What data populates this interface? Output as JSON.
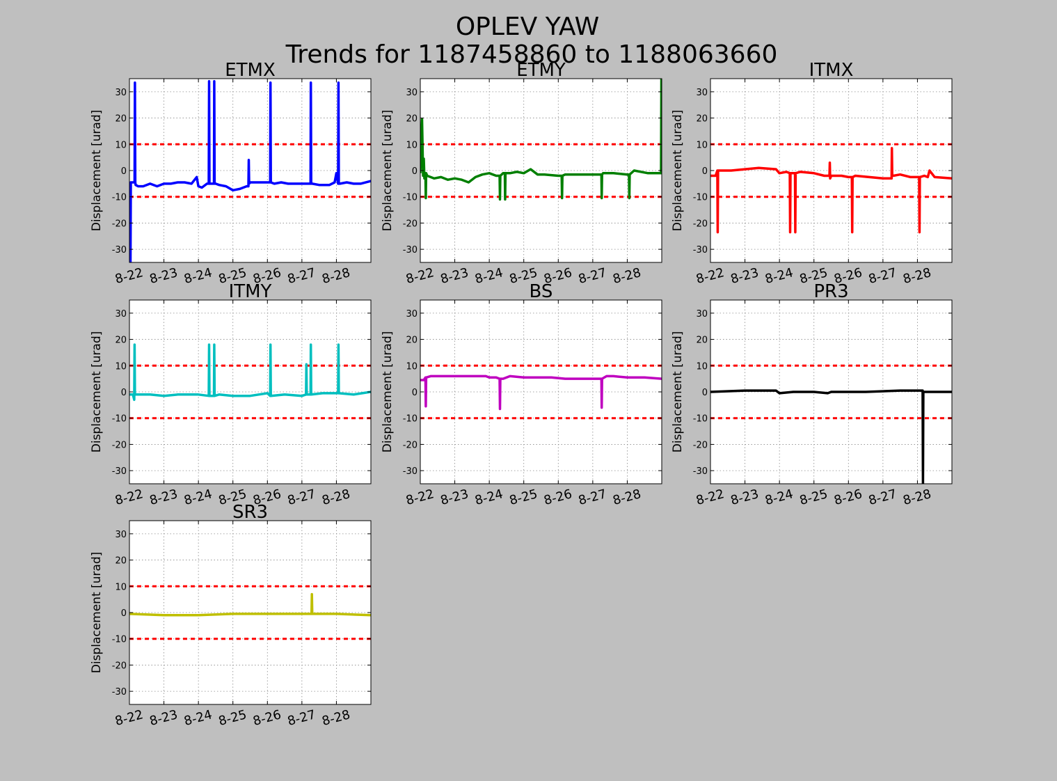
{
  "figure": {
    "title_line1": "OPLEV YAW",
    "title_line2": "Trends for 1187458860 to 1188063660",
    "background": "#bfbfbf"
  },
  "chart_data": [
    {
      "type": "line",
      "title": "ETMX",
      "ylabel": "Displacement [urad]",
      "xlabel": "",
      "color": "#0000ff",
      "ylim": [
        -35,
        35
      ],
      "xlim": [
        0,
        7
      ],
      "grid": true,
      "yticks": [
        -30,
        -20,
        -10,
        0,
        10,
        20,
        30
      ],
      "xticks": [
        0,
        1,
        2,
        3,
        4,
        5,
        6
      ],
      "xtick_labels": [
        "8-22",
        "8-23",
        "8-24",
        "8-25",
        "8-26",
        "8-27",
        "8-28"
      ],
      "thresholds": [
        10,
        -10
      ],
      "x": [
        0,
        0.03,
        0.04,
        0.05,
        0.08,
        0.15,
        0.16,
        0.17,
        0.18,
        0.25,
        0.4,
        0.6,
        0.8,
        1.0,
        1.2,
        1.4,
        1.6,
        1.8,
        1.95,
        2.0,
        2.1,
        2.25,
        2.3,
        2.31,
        2.32,
        2.35,
        2.45,
        2.46,
        2.47,
        2.5,
        2.6,
        2.8,
        3.0,
        3.2,
        3.4,
        3.45,
        3.46,
        3.47,
        3.5,
        3.55,
        3.6,
        3.8,
        4.0,
        4.08,
        4.09,
        4.1,
        4.2,
        4.4,
        4.6,
        4.8,
        5.0,
        5.25,
        5.26,
        5.27,
        5.3,
        5.5,
        5.8,
        5.95,
        6.0,
        6.05,
        6.06,
        6.07,
        6.1,
        6.3,
        6.5,
        6.7,
        7.0
      ],
      "y": [
        -4.5,
        -35,
        -4.5,
        -4.5,
        -4.5,
        -4.5,
        33.5,
        -4.5,
        -5.5,
        -6,
        -6,
        -5,
        -6,
        -5,
        -5,
        -4.5,
        -4.5,
        -5,
        -2.5,
        -6,
        -6.5,
        -5,
        -5,
        34,
        -5,
        -5,
        -5,
        34,
        -5,
        -5,
        -5.5,
        -6,
        -7.5,
        -7,
        -6,
        -6,
        4,
        -5,
        -4.5,
        -4.5,
        -4.5,
        -4.5,
        -4.5,
        -4.5,
        33.5,
        -4.5,
        -5,
        -4.5,
        -5,
        -5,
        -5,
        -5,
        33.5,
        -5,
        -5,
        -5.5,
        -5.5,
        -4.5,
        -1,
        -5,
        33.5,
        -5,
        -5,
        -4.5,
        -5,
        -5,
        -4
      ]
    },
    {
      "type": "line",
      "title": "ETMY",
      "ylabel": "Displacement [urad]",
      "xlabel": "",
      "color": "#007f00",
      "ylim": [
        -35,
        35
      ],
      "xlim": [
        0,
        7
      ],
      "grid": true,
      "yticks": [
        -30,
        -20,
        -10,
        0,
        10,
        20,
        30
      ],
      "xticks": [
        0,
        1,
        2,
        3,
        4,
        5,
        6
      ],
      "xtick_labels": [
        "8-22",
        "8-23",
        "8-24",
        "8-25",
        "8-26",
        "8-27",
        "8-28"
      ],
      "thresholds": [
        10,
        -10
      ],
      "x": [
        0,
        0.05,
        0.08,
        0.1,
        0.12,
        0.15,
        0.16,
        0.17,
        0.2,
        0.4,
        0.6,
        0.8,
        1.0,
        1.2,
        1.4,
        1.6,
        1.8,
        2.0,
        2.2,
        2.3,
        2.31,
        2.32,
        2.4,
        2.45,
        2.46,
        2.47,
        2.6,
        2.8,
        3.0,
        3.2,
        3.4,
        3.6,
        4.0,
        4.1,
        4.11,
        4.12,
        4.2,
        4.6,
        5.0,
        5.25,
        5.26,
        5.27,
        5.3,
        5.6,
        6.0,
        6.05,
        6.06,
        6.07,
        6.2,
        6.6,
        6.95,
        6.98,
        6.99,
        7.0
      ],
      "y": [
        -1,
        19.5,
        -2,
        4.5,
        -3,
        -1,
        -10.5,
        -1,
        -2,
        -3,
        -2.5,
        -3.5,
        -3,
        -3.5,
        -4.5,
        -2.5,
        -1.5,
        -1,
        -2,
        -2,
        -11,
        -2,
        -1,
        -1,
        -11,
        -1,
        -1,
        -0.5,
        -1,
        0.5,
        -1.5,
        -1.5,
        -2,
        -2,
        -10.5,
        -2,
        -1.5,
        -1.5,
        -1.5,
        -1.5,
        -10.5,
        -1.5,
        -1,
        -1,
        -1.5,
        -1.5,
        -10.5,
        -1.5,
        0,
        -1,
        -1,
        -1,
        35,
        35
      ]
    },
    {
      "type": "line",
      "title": "ITMX",
      "ylabel": "Displacement [urad]",
      "xlabel": "",
      "color": "#ff0000",
      "ylim": [
        -35,
        35
      ],
      "xlim": [
        0,
        7
      ],
      "grid": true,
      "yticks": [
        -30,
        -20,
        -10,
        0,
        10,
        20,
        30
      ],
      "xticks": [
        0,
        1,
        2,
        3,
        4,
        5,
        6
      ],
      "xtick_labels": [
        "8-22",
        "8-23",
        "8-24",
        "8-25",
        "8-26",
        "8-27",
        "8-28"
      ],
      "thresholds": [
        10,
        -10
      ],
      "x": [
        0,
        0.15,
        0.2,
        0.21,
        0.22,
        0.3,
        0.6,
        1.0,
        1.4,
        1.9,
        2.0,
        2.2,
        2.3,
        2.31,
        2.32,
        2.45,
        2.46,
        2.47,
        2.6,
        3.0,
        3.3,
        3.45,
        3.46,
        3.47,
        3.5,
        3.8,
        4.0,
        4.1,
        4.11,
        4.12,
        4.2,
        4.6,
        5.0,
        5.25,
        5.26,
        5.27,
        5.3,
        5.5,
        5.8,
        6.05,
        6.06,
        6.07,
        6.2,
        6.3,
        6.35,
        6.5,
        7.0
      ],
      "y": [
        -2,
        -2,
        0,
        -23.5,
        0,
        0,
        0,
        0.5,
        1,
        0.5,
        -1,
        -0.5,
        -1,
        -23.5,
        -1,
        -1,
        -23.5,
        -1,
        -0.5,
        -1,
        -2,
        -2,
        3,
        -3,
        -2,
        -2,
        -2.5,
        -2.5,
        -23.5,
        -2.5,
        -2,
        -2.5,
        -3,
        -3,
        8.5,
        -2,
        -2,
        -1.5,
        -2.5,
        -2.5,
        -23.5,
        -2.5,
        -2,
        -2.5,
        0,
        -2.5,
        -3
      ]
    },
    {
      "type": "line",
      "title": "ITMY",
      "ylabel": "Displacement [urad]",
      "xlabel": "",
      "color": "#00bfbf",
      "ylim": [
        -35,
        35
      ],
      "xlim": [
        0,
        7
      ],
      "grid": true,
      "yticks": [
        -30,
        -20,
        -10,
        0,
        10,
        20,
        30
      ],
      "xticks": [
        0,
        1,
        2,
        3,
        4,
        5,
        6
      ],
      "xtick_labels": [
        "8-22",
        "8-23",
        "8-24",
        "8-25",
        "8-26",
        "8-27",
        "8-28"
      ],
      "thresholds": [
        10,
        -10
      ],
      "x": [
        0,
        0.1,
        0.14,
        0.15,
        0.16,
        0.17,
        0.2,
        0.6,
        1.0,
        1.4,
        2.0,
        2.3,
        2.31,
        2.32,
        2.45,
        2.46,
        2.47,
        2.6,
        3.0,
        3.5,
        4.0,
        4.08,
        4.09,
        4.1,
        4.5,
        5.0,
        5.12,
        5.13,
        5.14,
        5.25,
        5.26,
        5.27,
        5.6,
        6.0,
        6.05,
        6.06,
        6.07,
        6.5,
        7.0
      ],
      "y": [
        -1,
        -1,
        -3,
        18,
        -1,
        -1,
        -1,
        -1,
        -1.5,
        -1,
        -1,
        -1.5,
        18,
        -1.5,
        -1.5,
        18,
        -1.5,
        -1,
        -1.5,
        -1.5,
        -0.5,
        -1.5,
        18,
        -1.5,
        -1,
        -1.5,
        -1,
        10.5,
        -1,
        -1,
        18,
        -1,
        -0.5,
        -0.5,
        -0.5,
        18,
        -0.5,
        -1,
        0
      ]
    },
    {
      "type": "line",
      "title": "BS",
      "ylabel": "Displacement [urad]",
      "xlabel": "",
      "color": "#bf00bf",
      "ylim": [
        -35,
        35
      ],
      "xlim": [
        0,
        7
      ],
      "grid": true,
      "yticks": [
        -30,
        -20,
        -10,
        0,
        10,
        20,
        30
      ],
      "xticks": [
        0,
        1,
        2,
        3,
        4,
        5,
        6
      ],
      "xtick_labels": [
        "8-22",
        "8-23",
        "8-24",
        "8-25",
        "8-26",
        "8-27",
        "8-28"
      ],
      "thresholds": [
        10,
        -10
      ],
      "x": [
        0,
        0.1,
        0.15,
        0.16,
        0.17,
        0.3,
        0.8,
        1.4,
        1.9,
        2.0,
        2.2,
        2.3,
        2.31,
        2.32,
        2.4,
        2.6,
        3.0,
        3.4,
        3.8,
        4.2,
        4.6,
        5.0,
        5.25,
        5.26,
        5.27,
        5.4,
        5.6,
        6.0,
        6.5,
        7.0
      ],
      "y": [
        4.5,
        4.5,
        5.5,
        -5.5,
        5.5,
        6,
        6,
        6,
        6,
        5.5,
        5.5,
        5,
        -6.5,
        5,
        5,
        6,
        5.5,
        5.5,
        5.5,
        5,
        5,
        5,
        5,
        -6,
        5,
        6,
        6,
        5.5,
        5.5,
        5
      ]
    },
    {
      "type": "line",
      "title": "PR3",
      "ylabel": "Displacement [urad]",
      "xlabel": "",
      "color": "#000000",
      "ylim": [
        -35,
        35
      ],
      "xlim": [
        0,
        7
      ],
      "grid": true,
      "yticks": [
        -30,
        -20,
        -10,
        0,
        10,
        20,
        30
      ],
      "xticks": [
        0,
        1,
        2,
        3,
        4,
        5,
        6
      ],
      "xtick_labels": [
        "8-22",
        "8-23",
        "8-24",
        "8-25",
        "8-26",
        "8-27",
        "8-28"
      ],
      "thresholds": [
        10,
        -10
      ],
      "x": [
        0,
        1.0,
        1.9,
        2.0,
        2.4,
        3.0,
        3.4,
        3.5,
        4.5,
        5.5,
        6.15,
        6.16,
        6.17,
        6.5,
        7.0
      ],
      "y": [
        0,
        0.5,
        0.5,
        -0.5,
        0,
        0,
        -0.5,
        0,
        0,
        0.5,
        0.5,
        -35,
        0,
        0,
        0
      ]
    },
    {
      "type": "line",
      "title": "SR3",
      "ylabel": "Displacement [urad]",
      "xlabel": "",
      "color": "#bfbf00",
      "ylim": [
        -35,
        35
      ],
      "xlim": [
        0,
        7
      ],
      "grid": true,
      "yticks": [
        -30,
        -20,
        -10,
        0,
        10,
        20,
        30
      ],
      "xticks": [
        0,
        1,
        2,
        3,
        4,
        5,
        6
      ],
      "xtick_labels": [
        "8-22",
        "8-23",
        "8-24",
        "8-25",
        "8-26",
        "8-27",
        "8-28"
      ],
      "thresholds": [
        10,
        -10
      ],
      "x": [
        0,
        1.0,
        2.0,
        3.0,
        4.0,
        5.0,
        5.28,
        5.29,
        5.3,
        6.0,
        7.0
      ],
      "y": [
        -0.5,
        -1,
        -1,
        -0.5,
        -0.5,
        -0.5,
        -0.5,
        7,
        -0.5,
        -0.5,
        -1
      ]
    }
  ]
}
